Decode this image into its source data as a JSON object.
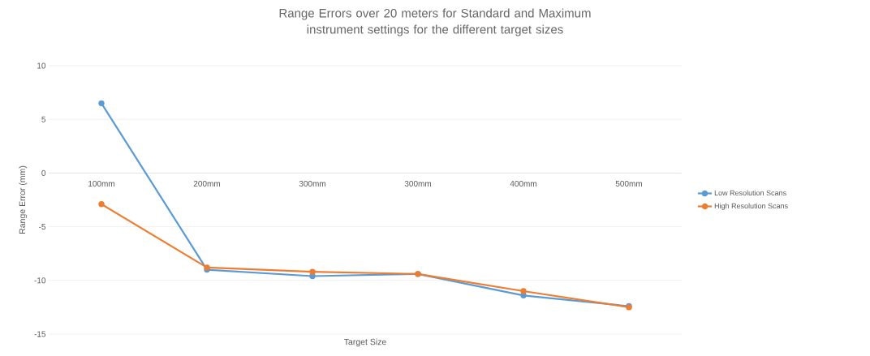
{
  "chart_data": {
    "type": "line",
    "title": "Range Errors over 20 meters for Standard and Maximum instrument settings for the different target sizes",
    "xlabel": "Target Size",
    "ylabel": "Range Error (mm)",
    "categories": [
      "100mm",
      "200mm",
      "300mm",
      "300mm",
      "400mm",
      "500mm"
    ],
    "series": [
      {
        "name": "Low Resolution Scans",
        "color": "#5b9bd5",
        "values": [
          6.5,
          -9.0,
          -9.6,
          -9.4,
          -11.4,
          -12.4
        ]
      },
      {
        "name": "High Resolution Scans",
        "color": "#ed7d31",
        "values": [
          -2.9,
          -8.8,
          -9.2,
          -9.4,
          -11.0,
          -12.5
        ]
      }
    ],
    "ylim": [
      -15,
      10
    ],
    "yticks": [
      -15,
      -10,
      -5,
      0,
      5,
      10
    ],
    "grid": "y",
    "legend": "right",
    "marker": "circle",
    "line_style": "solid"
  }
}
